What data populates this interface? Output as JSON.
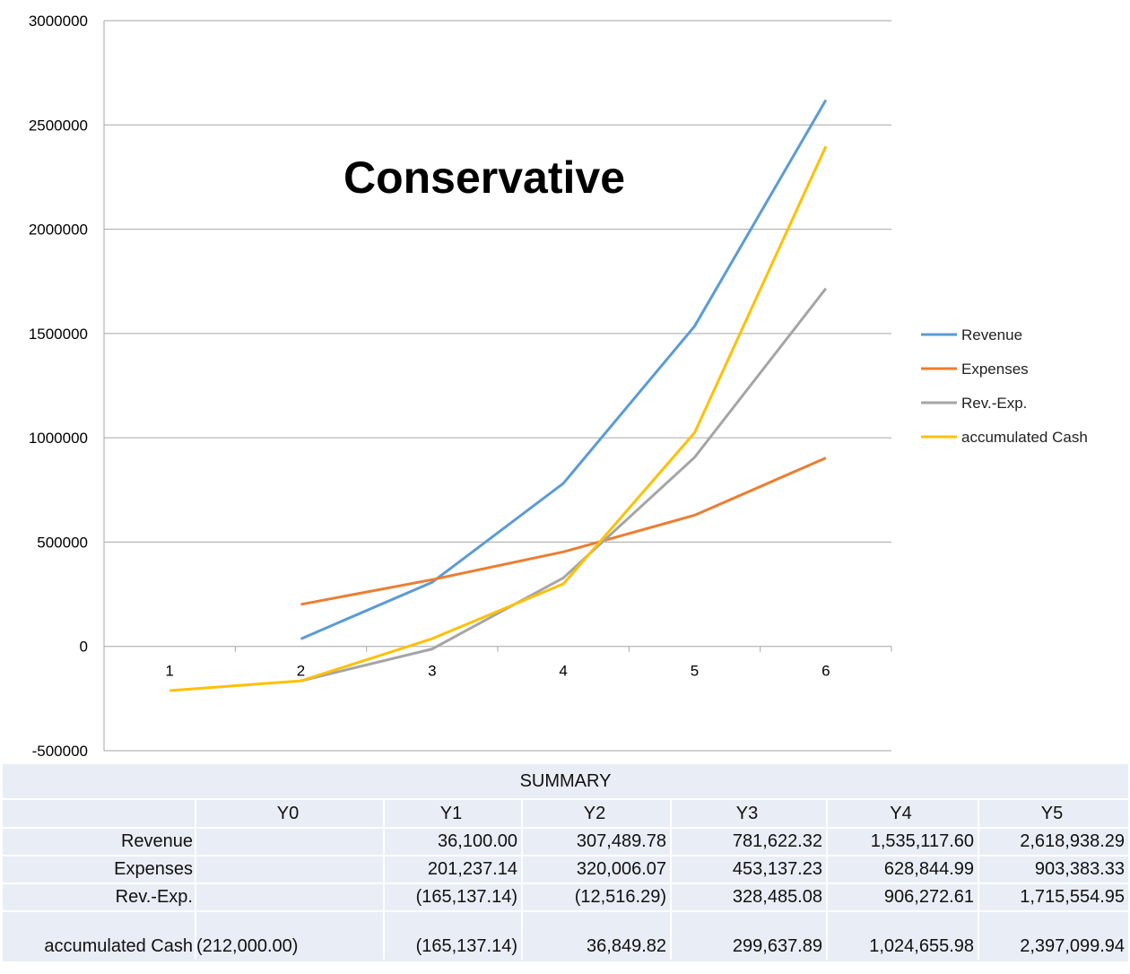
{
  "chart_data": {
    "type": "line",
    "title": "Conservative",
    "xlabel": "",
    "ylabel": "",
    "categories": [
      "1",
      "2",
      "3",
      "4",
      "5",
      "6"
    ],
    "ylim": [
      -500000,
      3000000
    ],
    "yticks": [
      "-500000",
      "0",
      "500000",
      "1000000",
      "1500000",
      "2000000",
      "2500000",
      "3000000"
    ],
    "grid": true,
    "legend_position": "right",
    "series": [
      {
        "name": "Revenue",
        "color": "#5b9bd5",
        "values": [
          null,
          36100.0,
          307489.78,
          781622.32,
          1535117.6,
          2618938.29
        ]
      },
      {
        "name": "Expenses",
        "color": "#ed7d31",
        "values": [
          null,
          201237.14,
          320006.07,
          453137.23,
          628844.99,
          903383.33
        ]
      },
      {
        "name": "Rev.-Exp.",
        "color": "#a5a5a5",
        "values": [
          null,
          -165137.14,
          -12516.29,
          328485.08,
          906272.61,
          1715554.95
        ]
      },
      {
        "name": "accumulated Cash",
        "color": "#ffc000",
        "values": [
          -212000.0,
          -165137.14,
          36849.82,
          299637.89,
          1024655.98,
          2397099.94
        ]
      }
    ]
  },
  "summary": {
    "title": "SUMMARY",
    "headers": [
      "",
      "Y0",
      "Y1",
      "Y2",
      "Y3",
      "Y4",
      "Y5"
    ],
    "rows": [
      {
        "label": "Revenue",
        "values": [
          "",
          "36,100.00",
          "307,489.78",
          "781,622.32",
          "1,535,117.60",
          "2,618,938.29"
        ]
      },
      {
        "label": "Expenses",
        "values": [
          "",
          "201,237.14",
          "320,006.07",
          "453,137.23",
          "628,844.99",
          "903,383.33"
        ]
      },
      {
        "label": "Rev.-Exp.",
        "values": [
          "",
          "(165,137.14)",
          "(12,516.29)",
          "328,485.08",
          "906,272.61",
          "1,715,554.95"
        ]
      },
      {
        "label": "accumulated Cash",
        "values": [
          "(212,000.00)",
          "(165,137.14)",
          "36,849.82",
          "299,637.89",
          "1,024,655.98",
          "2,397,099.94"
        ]
      }
    ]
  }
}
